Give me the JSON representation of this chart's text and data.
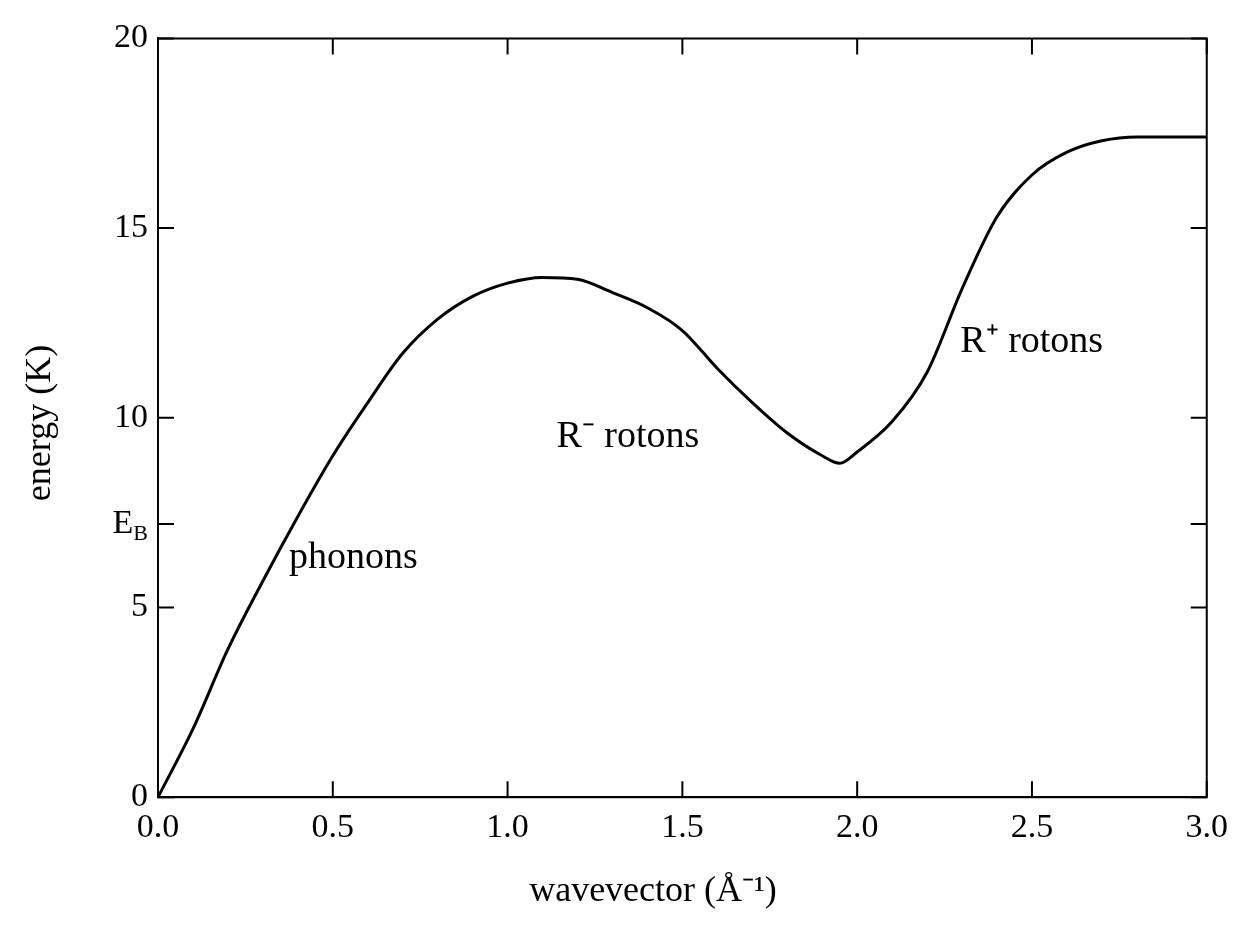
{
  "chart_data": {
    "type": "line",
    "xlabel": "wavevector (Å⁻¹)",
    "ylabel": "energy (K)",
    "x": [
      0,
      0.1,
      0.2,
      0.3,
      0.4,
      0.5,
      0.6,
      0.7,
      0.8,
      0.9,
      1.0,
      1.1,
      1.2,
      1.3,
      1.4,
      1.5,
      1.6,
      1.7,
      1.8,
      1.9,
      1.95,
      2.0,
      2.1,
      2.2,
      2.3,
      2.4,
      2.5,
      2.6,
      2.7,
      2.8,
      2.9,
      3.0
    ],
    "series": [
      {
        "color": "#000000",
        "values": [
          0,
          1.8,
          3.9,
          5.7,
          7.4,
          9.0,
          10.4,
          11.7,
          12.6,
          13.2,
          13.55,
          13.7,
          13.65,
          13.3,
          12.9,
          12.3,
          11.3,
          10.4,
          9.6,
          9.0,
          8.8,
          9.1,
          9.9,
          11.2,
          13.4,
          15.3,
          16.4,
          17.0,
          17.3,
          17.4,
          17.4,
          17.4
        ]
      }
    ],
    "xlim": [
      0,
      3
    ],
    "ylim": [
      0,
      20
    ],
    "xticks": [
      {
        "value": 0,
        "label": "0.0"
      },
      {
        "value": 0.5,
        "label": "0.5"
      },
      {
        "value": 1,
        "label": "1.0"
      },
      {
        "value": 1.5,
        "label": "1.5"
      },
      {
        "value": 2,
        "label": "2.0"
      },
      {
        "value": 2.5,
        "label": "2.5"
      },
      {
        "value": 3,
        "label": "3.0"
      }
    ],
    "yticks": [
      0,
      5,
      {
        "value": 7.2,
        "label": "E$_{B}$"
      },
      10,
      15,
      20
    ],
    "annotations": [
      "phonons",
      "R⁻ rotons",
      "R⁺ rotons"
    ],
    "grid": false,
    "legend": false,
    "marker": "none",
    "line_style": "solid"
  }
}
